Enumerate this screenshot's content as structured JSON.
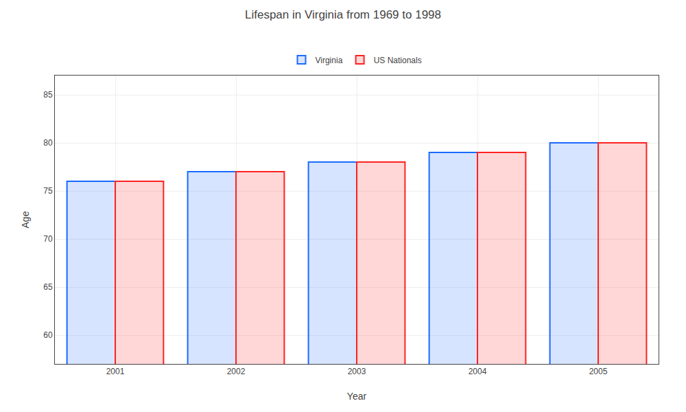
{
  "chart_data": {
    "type": "bar",
    "title": "Lifespan in Virginia from 1969 to 1998",
    "xlabel": "Year",
    "ylabel": "Age",
    "categories": [
      "2001",
      "2002",
      "2003",
      "2004",
      "2005"
    ],
    "series": [
      {
        "name": "Virginia",
        "color": "#1a6aff",
        "values": [
          76,
          77,
          78,
          79,
          80
        ]
      },
      {
        "name": "US Nationals",
        "color": "#ff2222",
        "values": [
          76,
          77,
          78,
          79,
          80
        ]
      }
    ],
    "ylim": [
      57,
      87
    ],
    "yticks": [
      60,
      65,
      70,
      75,
      80,
      85
    ],
    "grid": true,
    "legend": "upper center"
  }
}
